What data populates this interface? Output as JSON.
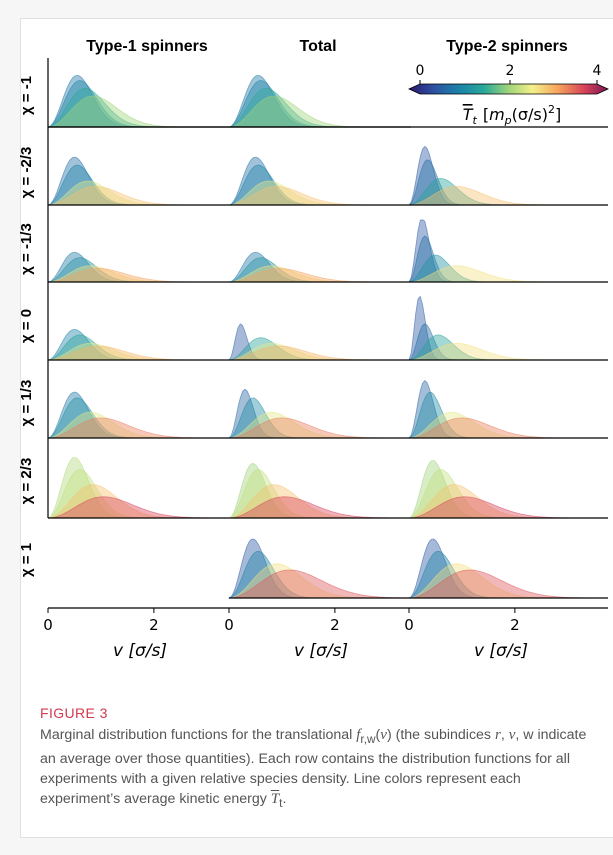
{
  "figure": {
    "label": "FIGURE 3",
    "caption_parts": {
      "p1": "Marginal distribution functions for the translational ",
      "f": "f",
      "fsub": "r,w",
      "p2": "(",
      "v": "v",
      "p3": ") (the subindices ",
      "r": "r",
      "p4": ", ",
      "v2": "v",
      "p5": ", w indicate an average over those quantities). Each row contains the distribution functions for all experiments with a given relative species density. Line colors represent each experiment’s average kinetic energy ",
      "T": "T",
      "Tsub": "t",
      "p6": "."
    }
  },
  "chart_data": {
    "type": "area",
    "column_titles": [
      "Type-1 spinners",
      "Total",
      "Type-2 spinners"
    ],
    "row_labels": [
      "χ = -1",
      "χ = -2/3",
      "χ = -1/3",
      "χ = 0",
      "χ = 1/3",
      "χ = 2/3",
      "χ = 1"
    ],
    "empty_panels": [
      [
        0,
        2
      ],
      [
        6,
        0
      ]
    ],
    "x_ticks": [
      [
        "0",
        "2"
      ],
      [
        "0",
        "2"
      ],
      [
        "0",
        "2"
      ]
    ],
    "xlabel": "v [σ/s]",
    "xlim": [
      0,
      3.4
    ],
    "colorbar": {
      "ticks": [
        "0",
        "2",
        "4"
      ],
      "label": "T̅t [mp(σ/s)2]",
      "label_parts": {
        "T": "T",
        "t": "t",
        "m": "m",
        "p": "p",
        "unit": "(σ/s)",
        "exp": "2",
        "lb": "[",
        "rb": "]"
      },
      "range": [
        0,
        4
      ],
      "colors": [
        "#2a186c",
        "#2e4fa0",
        "#1a82a8",
        "#2aaa98",
        "#9fd47a",
        "#f4f08a",
        "#f5a35c",
        "#d8435a",
        "#7a1752"
      ]
    },
    "series_model": "each panel overlays curves f(v) = A v^2 exp(-v^2 / (2 s^2)) for several experiments; color encodes average kinetic energy",
    "panels": [
      [
        {
          "curves": [
            {
              "s": 0.55,
              "A": 1.0,
              "T": 0.9
            },
            {
              "s": 0.6,
              "A": 0.9,
              "T": 1.0
            },
            {
              "s": 0.7,
              "A": 0.75,
              "T": 1.5
            },
            {
              "s": 0.85,
              "A": 0.6,
              "T": 2.0
            }
          ]
        },
        {
          "curves": [
            {
              "s": 0.55,
              "A": 1.0,
              "T": 0.9
            },
            {
              "s": 0.6,
              "A": 0.9,
              "T": 1.0
            },
            {
              "s": 0.7,
              "A": 0.75,
              "T": 1.5
            },
            {
              "s": 0.85,
              "A": 0.6,
              "T": 2.0
            }
          ]
        },
        null
      ],
      [
        {
          "curves": [
            {
              "s": 0.5,
              "A": 0.9,
              "T": 0.8
            },
            {
              "s": 0.55,
              "A": 0.75,
              "T": 1.0
            },
            {
              "s": 0.75,
              "A": 0.45,
              "T": 2.4
            },
            {
              "s": 0.9,
              "A": 0.35,
              "T": 2.8
            }
          ]
        },
        {
          "curves": [
            {
              "s": 0.5,
              "A": 0.9,
              "T": 0.8
            },
            {
              "s": 0.55,
              "A": 0.75,
              "T": 1.0
            },
            {
              "s": 0.75,
              "A": 0.45,
              "T": 2.4
            },
            {
              "s": 0.9,
              "A": 0.35,
              "T": 2.8
            }
          ]
        },
        {
          "curves": [
            {
              "s": 0.3,
              "A": 1.1,
              "T": 0.6
            },
            {
              "s": 0.35,
              "A": 0.85,
              "T": 0.8
            },
            {
              "s": 0.6,
              "A": 0.5,
              "T": 1.4
            },
            {
              "s": 0.9,
              "A": 0.35,
              "T": 2.8
            }
          ]
        }
      ],
      [
        {
          "curves": [
            {
              "s": 0.5,
              "A": 0.55,
              "T": 0.9
            },
            {
              "s": 0.6,
              "A": 0.45,
              "T": 1.2
            },
            {
              "s": 0.8,
              "A": 0.3,
              "T": 2.6
            },
            {
              "s": 0.95,
              "A": 0.25,
              "T": 3.0
            }
          ]
        },
        {
          "curves": [
            {
              "s": 0.5,
              "A": 0.55,
              "T": 0.9
            },
            {
              "s": 0.6,
              "A": 0.45,
              "T": 1.2
            },
            {
              "s": 0.8,
              "A": 0.3,
              "T": 2.6
            },
            {
              "s": 0.95,
              "A": 0.25,
              "T": 3.0
            }
          ]
        },
        {
          "curves": [
            {
              "s": 0.25,
              "A": 1.2,
              "T": 0.6
            },
            {
              "s": 0.3,
              "A": 0.85,
              "T": 0.8
            },
            {
              "s": 0.5,
              "A": 0.5,
              "T": 1.2
            },
            {
              "s": 0.9,
              "A": 0.3,
              "T": 2.6
            }
          ]
        }
      ],
      [
        {
          "curves": [
            {
              "s": 0.5,
              "A": 0.55,
              "T": 1.0
            },
            {
              "s": 0.6,
              "A": 0.45,
              "T": 1.4
            },
            {
              "s": 0.8,
              "A": 0.3,
              "T": 2.4
            },
            {
              "s": 0.95,
              "A": 0.25,
              "T": 2.9
            }
          ]
        },
        {
          "curves": [
            {
              "s": 0.22,
              "A": 0.65,
              "T": 0.6
            },
            {
              "s": 0.6,
              "A": 0.4,
              "T": 1.4
            },
            {
              "s": 0.8,
              "A": 0.3,
              "T": 2.4
            },
            {
              "s": 0.95,
              "A": 0.25,
              "T": 2.9
            }
          ]
        },
        {
          "curves": [
            {
              "s": 0.2,
              "A": 1.15,
              "T": 0.6
            },
            {
              "s": 0.3,
              "A": 0.65,
              "T": 0.8
            },
            {
              "s": 0.55,
              "A": 0.45,
              "T": 1.4
            },
            {
              "s": 0.9,
              "A": 0.3,
              "T": 2.6
            }
          ]
        }
      ],
      [
        {
          "curves": [
            {
              "s": 0.5,
              "A": 0.8,
              "T": 0.9
            },
            {
              "s": 0.55,
              "A": 0.7,
              "T": 1.2
            },
            {
              "s": 0.8,
              "A": 0.45,
              "T": 2.4
            },
            {
              "s": 1.0,
              "A": 0.35,
              "T": 3.2
            }
          ]
        },
        {
          "curves": [
            {
              "s": 0.3,
              "A": 0.85,
              "T": 0.7
            },
            {
              "s": 0.45,
              "A": 0.7,
              "T": 1.1
            },
            {
              "s": 0.8,
              "A": 0.45,
              "T": 2.4
            },
            {
              "s": 1.0,
              "A": 0.35,
              "T": 3.2
            }
          ]
        },
        {
          "curves": [
            {
              "s": 0.3,
              "A": 1.0,
              "T": 0.7
            },
            {
              "s": 0.4,
              "A": 0.8,
              "T": 1.1
            },
            {
              "s": 0.8,
              "A": 0.45,
              "T": 2.4
            },
            {
              "s": 1.0,
              "A": 0.35,
              "T": 3.2
            }
          ]
        }
      ],
      [
        {
          "curves": [
            {
              "s": 0.5,
              "A": 1.0,
              "T": 2.1
            },
            {
              "s": 0.6,
              "A": 0.8,
              "T": 2.2
            },
            {
              "s": 0.85,
              "A": 0.55,
              "T": 2.8
            },
            {
              "s": 1.05,
              "A": 0.35,
              "T": 3.5
            }
          ]
        },
        {
          "curves": [
            {
              "s": 0.45,
              "A": 0.9,
              "T": 2.0
            },
            {
              "s": 0.55,
              "A": 0.8,
              "T": 2.2
            },
            {
              "s": 0.85,
              "A": 0.55,
              "T": 2.8
            },
            {
              "s": 1.05,
              "A": 0.35,
              "T": 3.5
            }
          ]
        },
        {
          "curves": [
            {
              "s": 0.45,
              "A": 0.95,
              "T": 2.0
            },
            {
              "s": 0.6,
              "A": 0.8,
              "T": 2.2
            },
            {
              "s": 0.85,
              "A": 0.55,
              "T": 2.8
            },
            {
              "s": 1.05,
              "A": 0.35,
              "T": 3.5
            }
          ]
        }
      ],
      [
        null,
        {
          "curves": [
            {
              "s": 0.45,
              "A": 0.95,
              "T": 0.6
            },
            {
              "s": 0.55,
              "A": 0.75,
              "T": 1.0
            },
            {
              "s": 0.9,
              "A": 0.55,
              "T": 2.6
            },
            {
              "s": 1.15,
              "A": 0.45,
              "T": 3.4
            }
          ]
        },
        {
          "curves": [
            {
              "s": 0.45,
              "A": 0.95,
              "T": 0.6
            },
            {
              "s": 0.55,
              "A": 0.75,
              "T": 1.0
            },
            {
              "s": 0.9,
              "A": 0.55,
              "T": 2.6
            },
            {
              "s": 1.15,
              "A": 0.45,
              "T": 3.4
            }
          ]
        }
      ]
    ]
  }
}
